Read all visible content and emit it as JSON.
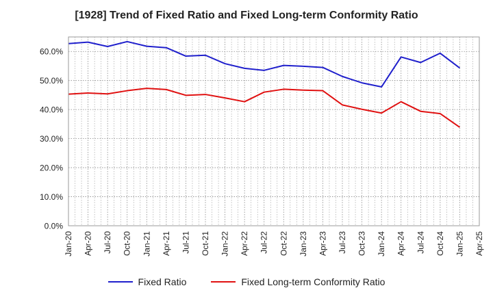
{
  "chart_data": {
    "type": "line",
    "title": "[1928]  Trend of Fixed Ratio and Fixed Long-term Conformity Ratio",
    "xlabel": "",
    "ylabel": "",
    "ylim": [
      0,
      65
    ],
    "y_ticks": [
      0,
      10,
      20,
      30,
      40,
      50,
      60
    ],
    "y_tick_labels": [
      "0.0%",
      "10.0%",
      "20.0%",
      "30.0%",
      "40.0%",
      "50.0%",
      "60.0%"
    ],
    "x_tick_labels": [
      "Jan-20",
      "Apr-20",
      "Jul-20",
      "Oct-20",
      "Jan-21",
      "Apr-21",
      "Jul-21",
      "Oct-21",
      "Jan-22",
      "Apr-22",
      "Jul-22",
      "Oct-22",
      "Jan-23",
      "Apr-23",
      "Jul-23",
      "Oct-23",
      "Jan-24",
      "Apr-24",
      "Jul-24",
      "Oct-24",
      "Jan-25",
      "Apr-25"
    ],
    "x": [
      "Jan-20",
      "Apr-20",
      "Jul-20",
      "Oct-20",
      "Jan-21",
      "Apr-21",
      "Jul-21",
      "Oct-21",
      "Jan-22",
      "Apr-22",
      "Jul-22",
      "Oct-22",
      "Jan-23",
      "Apr-23",
      "Jul-23",
      "Oct-23",
      "Jan-24",
      "Apr-24",
      "Jul-24",
      "Oct-24",
      "Jan-25"
    ],
    "grid": true,
    "legend_position": "bottom",
    "series": [
      {
        "name": "Fixed Ratio",
        "color": "#1f1fcc",
        "values": [
          62.7,
          63.2,
          61.7,
          63.4,
          61.8,
          61.3,
          58.4,
          58.7,
          55.8,
          54.2,
          53.5,
          55.2,
          54.9,
          54.5,
          51.4,
          49.2,
          47.8,
          58.1,
          56.2,
          59.4,
          54.3
        ]
      },
      {
        "name": "Fixed Long-term Conformity Ratio",
        "color": "#e01010",
        "values": [
          45.3,
          45.7,
          45.4,
          46.5,
          47.3,
          46.9,
          44.9,
          45.2,
          44.0,
          42.7,
          46.0,
          47.0,
          46.7,
          46.5,
          41.6,
          40.1,
          38.8,
          42.7,
          39.4,
          38.6,
          33.9
        ]
      }
    ]
  }
}
